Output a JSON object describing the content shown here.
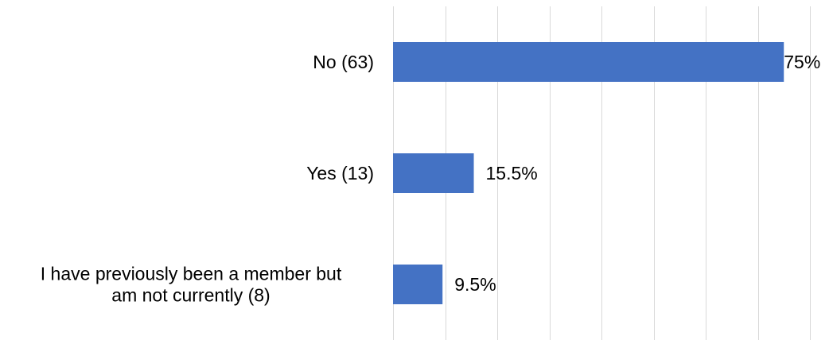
{
  "chart_data": {
    "type": "bar",
    "orientation": "horizontal",
    "categories": [
      [
        "No (63)"
      ],
      [
        "Yes (13)"
      ],
      [
        "I have previously been a member but",
        "am not currently (8)"
      ]
    ],
    "values": [
      75,
      15.5,
      9.5
    ],
    "data_labels": [
      "75%",
      "15.5%",
      "9.5%"
    ],
    "title": "",
    "xlabel": "",
    "ylabel": "",
    "xlim": [
      0,
      80
    ],
    "grid": true,
    "legend": "none",
    "colors": {
      "bar": "#4472C4",
      "grid": "#D9D9D9",
      "text": "#000000"
    }
  }
}
